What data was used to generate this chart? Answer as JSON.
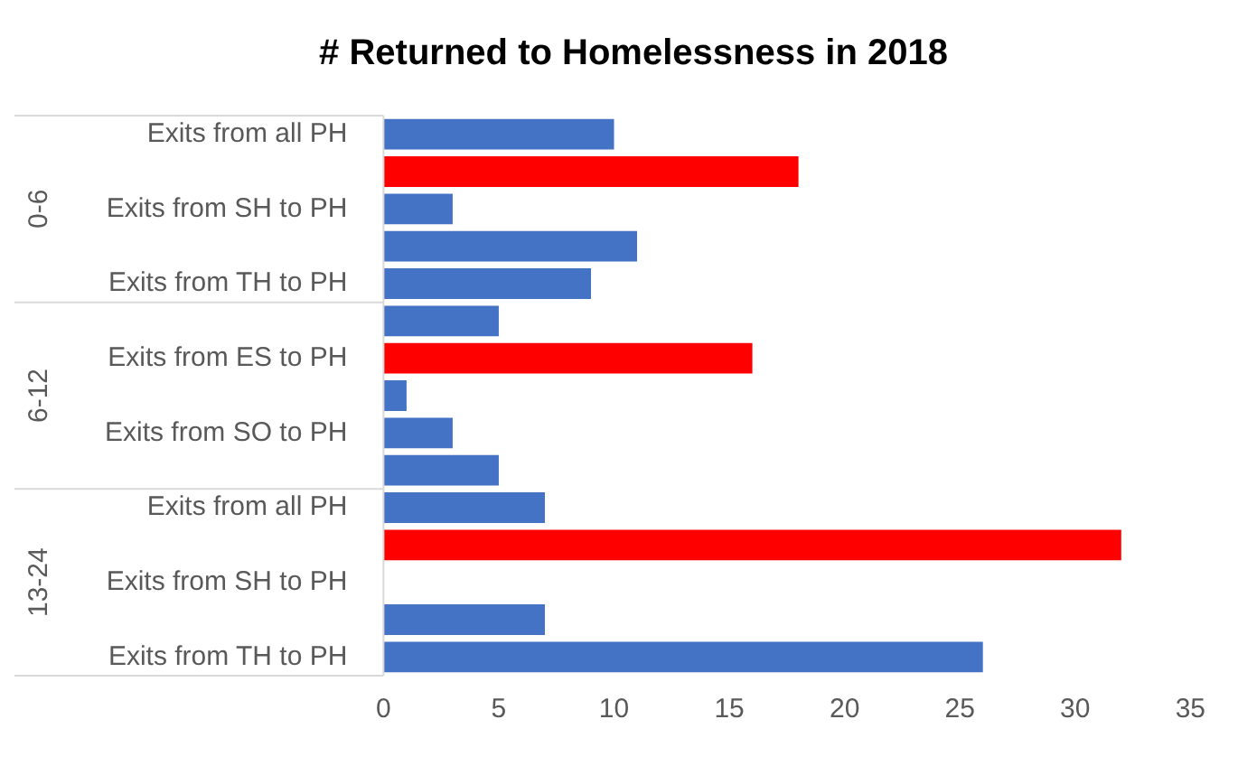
{
  "chart_data": {
    "type": "bar",
    "orientation": "horizontal",
    "title": "# Returned to Homelessness in 2018",
    "categories": [
      "Exits from all PH",
      null,
      "Exits from SH to PH",
      null,
      "Exits from TH to PH",
      null,
      "Exits from ES to PH",
      null,
      "Exits from SO to PH",
      null,
      "Exits from all PH",
      null,
      "Exits from SH to PH",
      null,
      "Exits from TH to PH"
    ],
    "values": [
      10,
      18,
      3,
      11,
      9,
      5,
      16,
      1,
      3,
      5,
      7,
      32,
      0,
      7,
      26
    ],
    "colors": [
      "#4472c4",
      "#ff0000",
      "#4472c4",
      "#4472c4",
      "#4472c4",
      "#4472c4",
      "#ff0000",
      "#4472c4",
      "#4472c4",
      "#4472c4",
      "#4472c4",
      "#ff0000",
      "#4472c4",
      "#4472c4",
      "#4472c4"
    ],
    "xlim": [
      0,
      35
    ],
    "xticks": [
      0,
      5,
      10,
      15,
      20,
      25,
      30,
      35
    ],
    "grid": false,
    "legend": false,
    "annotations": [
      "0-6",
      "6-12",
      "13-24"
    ]
  }
}
